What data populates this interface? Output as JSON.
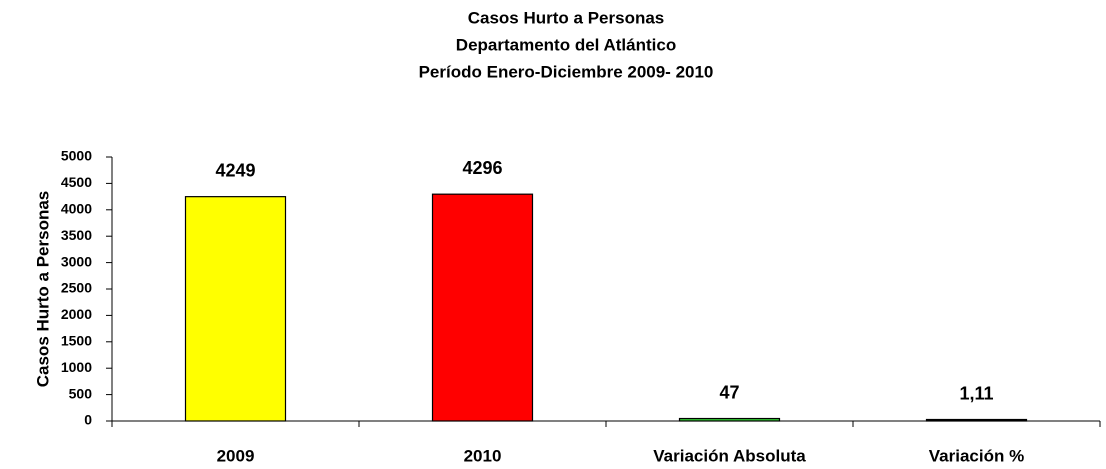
{
  "chart_data": {
    "type": "bar",
    "title": [
      "Casos Hurto a Personas",
      "Departamento del Atlántico",
      "Período Enero-Diciembre 2009- 2010"
    ],
    "y_label": "Casos Hurto a Personas",
    "categories": [
      "2009",
      "2010",
      "Variación Absoluta",
      "Variación %"
    ],
    "values": [
      4249,
      4296,
      47,
      1.11
    ],
    "value_labels": [
      "4249",
      "4296",
      "47",
      "1,11"
    ],
    "colors": [
      "#ffff00",
      "#ff0000",
      "#33cc33",
      "#000000"
    ],
    "ylim": [
      0,
      5000
    ],
    "yticks": [
      0,
      500,
      1000,
      1500,
      2000,
      2500,
      3000,
      3500,
      4000,
      4500,
      5000
    ],
    "grid": false
  }
}
